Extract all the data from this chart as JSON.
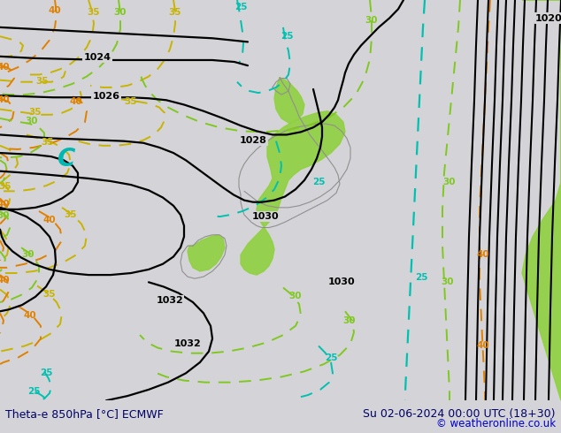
{
  "title_left": "Theta-e 850hPa [°C] ECMWF",
  "title_right": "Su 02-06-2024 00:00 UTC (18+30)",
  "copyright": "© weatheronline.co.uk",
  "bg_color": "#d4d4d8",
  "isobar_color": "#000000",
  "teal_color": "#00c0b0",
  "yellow_color": "#c8b400",
  "orange_color": "#e08000",
  "green_line_color": "#80c820",
  "green_fill_color": "#90d040",
  "land_color": "#d4d4d8",
  "figsize": [
    6.34,
    4.9
  ],
  "dpi": 100
}
